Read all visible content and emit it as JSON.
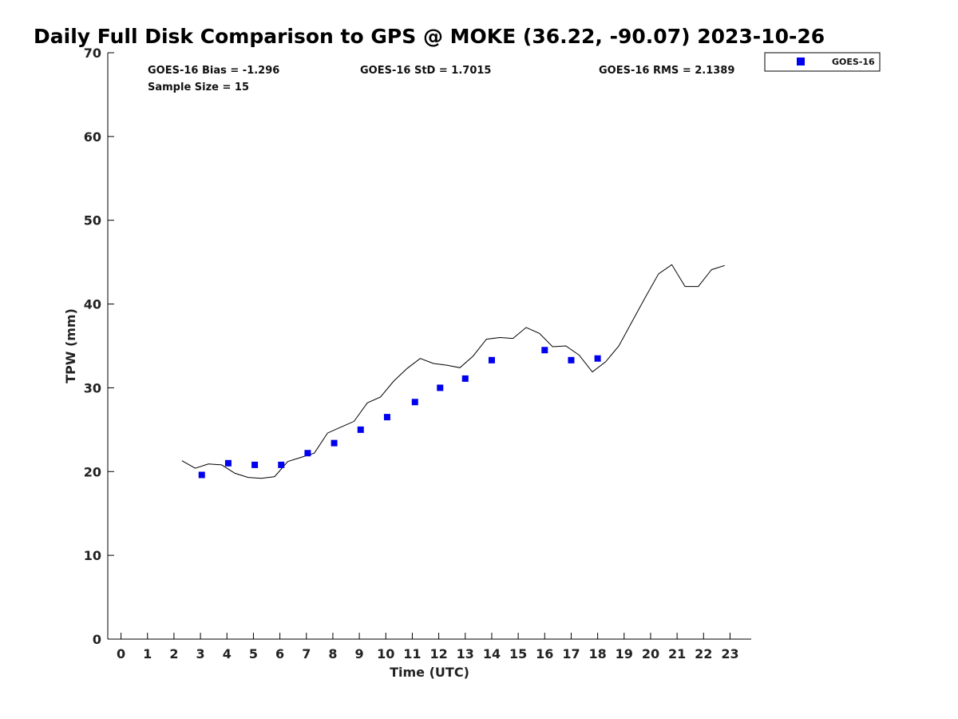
{
  "chart_data": {
    "type": "scatter",
    "title": "Daily Full Disk Comparison to GPS @ MOKE (36.22, -90.07) 2023-10-26",
    "xlabel": "Time (UTC)",
    "ylabel": "TPW (mm)",
    "xlim": [
      -0.5,
      23.8
    ],
    "ylim": [
      0,
      70
    ],
    "xticks": [
      0,
      1,
      2,
      3,
      4,
      5,
      6,
      7,
      8,
      9,
      10,
      11,
      12,
      13,
      14,
      15,
      16,
      17,
      18,
      19,
      20,
      21,
      22,
      23
    ],
    "yticks": [
      0,
      10,
      20,
      30,
      40,
      50,
      60,
      70
    ],
    "grid": false,
    "legend_position": "top-right outside",
    "stats": {
      "bias": "GOES-16 Bias = -1.296",
      "std": "GOES-16 StD = 1.7015",
      "rms": "GOES-16 RMS = 2.1389",
      "sample_size": "Sample Size = 15"
    },
    "series": [
      {
        "name": "GOES-16",
        "kind": "scatter",
        "marker": "square",
        "color": "#0000ee",
        "points": [
          [
            3.05,
            19.6
          ],
          [
            4.05,
            21.0
          ],
          [
            5.05,
            20.8
          ],
          [
            6.05,
            20.8
          ],
          [
            7.05,
            22.2
          ],
          [
            8.05,
            23.4
          ],
          [
            9.05,
            25.0
          ],
          [
            10.05,
            26.5
          ],
          [
            11.1,
            28.3
          ],
          [
            12.05,
            30.0
          ],
          [
            13.0,
            31.1
          ],
          [
            14.0,
            33.3
          ],
          [
            16.0,
            34.5
          ],
          [
            17.0,
            33.3
          ],
          [
            18.0,
            33.5
          ]
        ]
      },
      {
        "name": "",
        "kind": "line",
        "color": "#000000",
        "points": [
          [
            2.3,
            21.3
          ],
          [
            2.8,
            20.4
          ],
          [
            3.3,
            20.9
          ],
          [
            3.8,
            20.8
          ],
          [
            4.3,
            19.8
          ],
          [
            4.8,
            19.3
          ],
          [
            5.3,
            19.2
          ],
          [
            5.8,
            19.4
          ],
          [
            6.3,
            21.2
          ],
          [
            6.8,
            21.7
          ],
          [
            7.3,
            22.2
          ],
          [
            7.8,
            24.6
          ],
          [
            8.3,
            25.3
          ],
          [
            8.8,
            26.0
          ],
          [
            9.3,
            28.2
          ],
          [
            9.8,
            28.9
          ],
          [
            10.3,
            30.8
          ],
          [
            10.8,
            32.3
          ],
          [
            11.3,
            33.5
          ],
          [
            11.8,
            32.9
          ],
          [
            12.3,
            32.7
          ],
          [
            12.8,
            32.4
          ],
          [
            13.3,
            33.8
          ],
          [
            13.8,
            35.8
          ],
          [
            14.3,
            36.0
          ],
          [
            14.8,
            35.9
          ],
          [
            15.3,
            37.2
          ],
          [
            15.8,
            36.5
          ],
          [
            16.3,
            34.9
          ],
          [
            16.8,
            35.0
          ],
          [
            17.3,
            33.9
          ],
          [
            17.8,
            31.9
          ],
          [
            18.3,
            33.1
          ],
          [
            18.8,
            35.0
          ],
          [
            19.3,
            37.9
          ],
          [
            19.8,
            40.8
          ],
          [
            20.3,
            43.6
          ],
          [
            20.8,
            44.7
          ],
          [
            21.3,
            42.1
          ],
          [
            21.8,
            42.1
          ],
          [
            22.3,
            44.1
          ],
          [
            22.8,
            44.6
          ]
        ]
      }
    ]
  }
}
